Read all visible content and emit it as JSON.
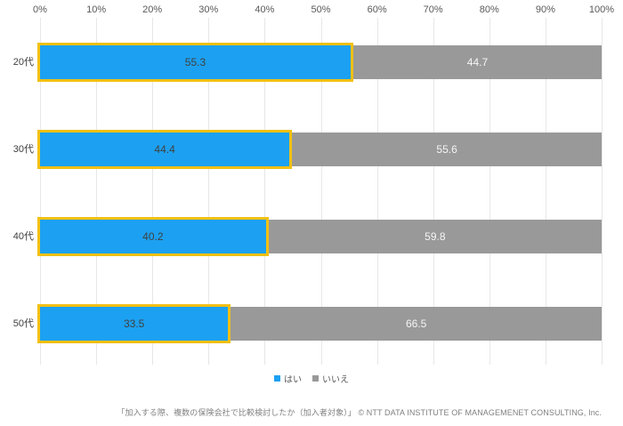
{
  "chart_data": {
    "type": "bar",
    "orientation": "horizontal",
    "stacked": true,
    "title": "",
    "categories": [
      "20代",
      "30代",
      "40代",
      "50代"
    ],
    "series": [
      {
        "name": "はい",
        "color": "#1ca1f2",
        "border_color": "#f2c014",
        "values": [
          55.3,
          44.4,
          40.2,
          33.5
        ]
      },
      {
        "name": "いいえ",
        "color": "#999999",
        "values": [
          44.7,
          55.6,
          59.8,
          66.5
        ]
      }
    ],
    "x_axis": {
      "position": "top",
      "min": 0,
      "max": 100,
      "ticks": [
        "0%",
        "10%",
        "20%",
        "30%",
        "40%",
        "50%",
        "60%",
        "70%",
        "80%",
        "90%",
        "100%"
      ]
    },
    "grid": "vertical",
    "legend_position": "bottom",
    "footer": "「加入する際、複数の保険会社で比較検討したか（加入者対象）」 © NTT DATA INSTITUTE OF MANAGEMENET CONSULTING, Inc."
  },
  "colors": {
    "background": "#ffffff",
    "gridline": "#e7e7e7",
    "axis_label": "#595959",
    "category_label": "#404040",
    "value_on_yes": "#404040",
    "value_on_no": "#f5f5f5",
    "footer_text": "#808080"
  }
}
